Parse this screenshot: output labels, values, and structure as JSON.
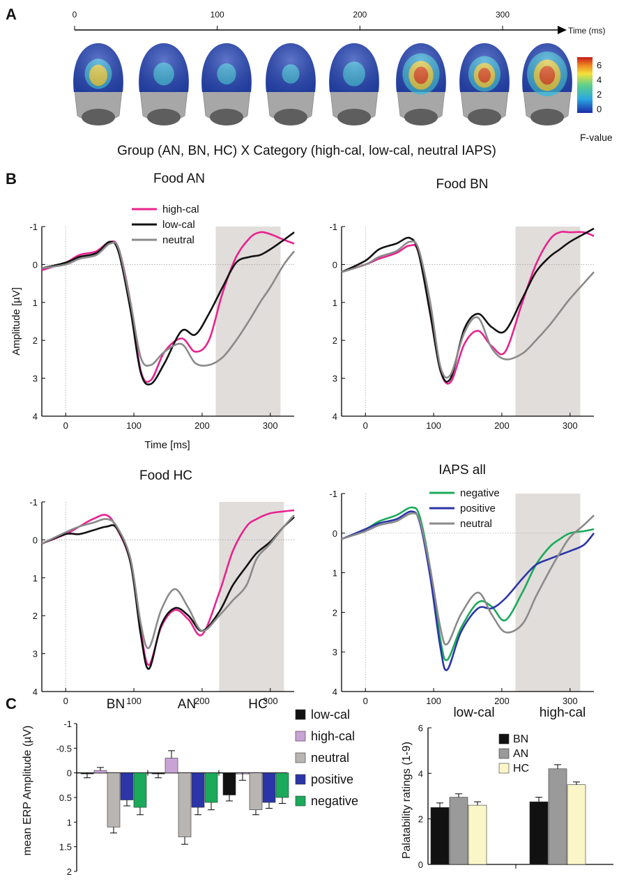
{
  "panel_labels": {
    "a": "A",
    "b": "B",
    "c": "C"
  },
  "timeline": {
    "ticks": [
      "0",
      "100",
      "200",
      "300"
    ],
    "axis_label": "Time (ms)"
  },
  "topomaps": {
    "caption": "Group (AN, BN, HC) X Category (high-cal, low-cal, neutral IAPS)",
    "colorbar_label": "F-value",
    "colorbar_ticks": [
      "6",
      "4",
      "2",
      "0"
    ],
    "intensity": [
      0.45,
      0.25,
      0.2,
      0.15,
      0.3,
      0.75,
      0.6,
      0.85
    ]
  },
  "colors": {
    "high_cal": "#e8228f",
    "low_cal": "#111111",
    "neutral": "#8a8a8a",
    "negative": "#1aaa5a",
    "positive": "#2b35a8",
    "bar_neutral": "#b9b5b2",
    "bar_high_cal": "#c9a3d6",
    "bar_AN": "#9a9a9a",
    "bar_HC": "#fbf6c8",
    "shade": "#e1ddda"
  },
  "chart_data": [
    {
      "type": "line",
      "id": "food_an",
      "title": "Food AN",
      "ylabel": "Amplitude [µV]",
      "xlabel": "Time [ms]",
      "xlim": [
        -35,
        335
      ],
      "ylim": [
        4,
        -1
      ],
      "xticks": [
        "0",
        "100",
        "200",
        "300"
      ],
      "yticks": [
        "-1",
        "0",
        "1",
        "2",
        "3",
        "4"
      ],
      "shaded": [
        220,
        315
      ],
      "x": [
        -35,
        0,
        20,
        45,
        65,
        78,
        95,
        110,
        125,
        145,
        170,
        190,
        210,
        230,
        250,
        270,
        285,
        300,
        320,
        335
      ],
      "series": [
        {
          "name": "high-cal",
          "values": [
            0.15,
            -0.05,
            -0.25,
            -0.35,
            -0.6,
            -0.4,
            1.0,
            2.8,
            3.05,
            2.3,
            1.95,
            2.3,
            2.0,
            0.75,
            -0.2,
            -0.7,
            -0.85,
            -0.8,
            -0.65,
            -0.55
          ]
        },
        {
          "name": "low-cal",
          "values": [
            0.1,
            -0.05,
            -0.2,
            -0.3,
            -0.6,
            -0.3,
            1.2,
            2.85,
            3.15,
            2.6,
            1.75,
            1.85,
            1.3,
            0.6,
            -0.05,
            -0.2,
            -0.25,
            -0.4,
            -0.65,
            -0.85
          ]
        },
        {
          "name": "neutral",
          "values": [
            0.1,
            0.0,
            -0.15,
            -0.25,
            -0.55,
            -0.4,
            1.0,
            2.45,
            2.65,
            2.3,
            2.1,
            2.6,
            2.65,
            2.45,
            2.0,
            1.45,
            1.0,
            0.6,
            0.0,
            -0.35
          ]
        }
      ]
    },
    {
      "type": "line",
      "id": "food_bn",
      "title": "Food BN",
      "xlim": [
        -35,
        335
      ],
      "ylim": [
        4,
        -1
      ],
      "xticks": [
        "0",
        "100",
        "200",
        "300"
      ],
      "yticks": [
        "-1",
        "0",
        "1",
        "2",
        "3",
        "4"
      ],
      "shaded": [
        220,
        315
      ],
      "x": [
        -35,
        0,
        20,
        45,
        65,
        78,
        95,
        110,
        125,
        145,
        165,
        185,
        205,
        230,
        250,
        270,
        285,
        300,
        320,
        335
      ],
      "series": [
        {
          "name": "high-cal",
          "values": [
            0.2,
            0.0,
            -0.15,
            -0.3,
            -0.5,
            -0.3,
            1.3,
            2.8,
            3.1,
            2.1,
            1.75,
            2.15,
            2.3,
            1.0,
            0.0,
            -0.65,
            -0.85,
            -0.85,
            -0.85,
            -0.75
          ]
        },
        {
          "name": "low-cal",
          "values": [
            0.2,
            -0.1,
            -0.4,
            -0.55,
            -0.7,
            -0.3,
            1.3,
            2.8,
            3.0,
            1.7,
            1.3,
            1.65,
            1.75,
            0.9,
            0.2,
            -0.2,
            -0.4,
            -0.6,
            -0.8,
            -0.95
          ]
        },
        {
          "name": "neutral",
          "values": [
            0.2,
            0.0,
            -0.2,
            -0.35,
            -0.6,
            -0.4,
            1.0,
            2.7,
            2.9,
            1.8,
            1.4,
            2.2,
            2.5,
            2.35,
            2.0,
            1.6,
            1.25,
            0.9,
            0.5,
            0.2
          ]
        }
      ]
    },
    {
      "type": "line",
      "id": "food_hc",
      "title": "Food HC",
      "xlim": [
        -35,
        335
      ],
      "ylim": [
        4,
        -1
      ],
      "xticks": [
        "0",
        "100",
        "200",
        "300"
      ],
      "yticks": [
        "-1",
        "0",
        "1",
        "2",
        "3",
        "4"
      ],
      "shaded": [
        225,
        320
      ],
      "x": [
        -35,
        0,
        20,
        40,
        60,
        75,
        95,
        110,
        122,
        140,
        160,
        180,
        200,
        225,
        245,
        265,
        280,
        300,
        320,
        335
      ],
      "series": [
        {
          "name": "high-cal",
          "values": [
            0.1,
            -0.15,
            -0.35,
            -0.55,
            -0.65,
            -0.3,
            0.6,
            2.4,
            3.3,
            2.3,
            1.85,
            2.1,
            2.5,
            1.4,
            0.3,
            -0.35,
            -0.55,
            -0.7,
            -0.75,
            -0.78
          ]
        },
        {
          "name": "low-cal",
          "values": [
            0.1,
            -0.15,
            -0.15,
            -0.25,
            -0.35,
            -0.3,
            0.6,
            2.5,
            3.4,
            2.25,
            1.8,
            2.0,
            2.4,
            1.9,
            1.2,
            0.7,
            0.35,
            0.05,
            -0.35,
            -0.6
          ]
        },
        {
          "name": "neutral",
          "values": [
            0.1,
            -0.2,
            -0.35,
            -0.45,
            -0.55,
            -0.35,
            0.5,
            2.2,
            2.85,
            1.85,
            1.3,
            1.8,
            2.4,
            2.0,
            1.6,
            1.2,
            0.5,
            0.1,
            -0.35,
            -0.65
          ]
        }
      ]
    },
    {
      "type": "line",
      "id": "iaps_all",
      "title": "IAPS all",
      "xlim": [
        -35,
        335
      ],
      "ylim": [
        4,
        -1
      ],
      "xticks": [
        "0",
        "100",
        "200",
        "300"
      ],
      "yticks": [
        "-1",
        "0",
        "1",
        "2",
        "3",
        "4"
      ],
      "shaded": [
        220,
        315
      ],
      "x": [
        -35,
        0,
        20,
        45,
        68,
        80,
        95,
        110,
        120,
        140,
        165,
        185,
        205,
        230,
        250,
        270,
        285,
        300,
        320,
        335
      ],
      "series": [
        {
          "name": "negative",
          "values": [
            0.15,
            -0.1,
            -0.3,
            -0.45,
            -0.65,
            -0.4,
            0.9,
            2.7,
            3.2,
            2.4,
            1.75,
            1.85,
            2.2,
            1.5,
            0.8,
            0.35,
            0.15,
            0.0,
            -0.05,
            -0.1
          ]
        },
        {
          "name": "positive",
          "values": [
            0.15,
            -0.1,
            -0.25,
            -0.35,
            -0.55,
            -0.25,
            1.1,
            2.9,
            3.45,
            2.5,
            1.9,
            1.9,
            1.65,
            1.15,
            0.8,
            0.65,
            0.55,
            0.45,
            0.3,
            0.0
          ]
        },
        {
          "name": "neutral",
          "values": [
            0.15,
            -0.05,
            -0.2,
            -0.3,
            -0.5,
            -0.3,
            0.9,
            2.4,
            2.8,
            2.05,
            1.5,
            2.05,
            2.5,
            2.3,
            1.6,
            0.95,
            0.5,
            0.1,
            -0.2,
            -0.45
          ]
        }
      ]
    },
    {
      "type": "bar",
      "id": "erp_bars",
      "ylabel": "mean ERP Amplitude (µV)",
      "ylim": [
        2,
        -1
      ],
      "yticks": [
        "-1",
        "-0.5",
        "0",
        "0.5",
        "1",
        "1.5",
        "2"
      ],
      "groups": [
        "BN",
        "AN",
        "HC"
      ],
      "series": [
        {
          "name": "low-cal",
          "values": [
            0.0,
            0.0,
            0.45
          ],
          "errors": [
            0.1,
            0.1,
            0.12
          ]
        },
        {
          "name": "high-cal",
          "values": [
            -0.05,
            -0.3,
            0.0
          ],
          "errors": [
            0.06,
            0.15,
            0.15
          ]
        },
        {
          "name": "neutral",
          "values": [
            1.1,
            1.3,
            0.75
          ],
          "errors": [
            0.12,
            0.15,
            0.1
          ]
        },
        {
          "name": "positive",
          "values": [
            0.55,
            0.7,
            0.6
          ],
          "errors": [
            0.12,
            0.15,
            0.12
          ]
        },
        {
          "name": "negative",
          "values": [
            0.7,
            0.6,
            0.5
          ],
          "errors": [
            0.15,
            0.15,
            0.12
          ]
        }
      ]
    },
    {
      "type": "bar",
      "id": "palatability",
      "ylabel": "Palatability ratings (1-9)",
      "ylim": [
        0,
        6
      ],
      "yticks": [
        "0",
        "2",
        "4",
        "6"
      ],
      "groups": [
        "low-cal",
        "high-cal"
      ],
      "series": [
        {
          "name": "BN",
          "values": [
            2.5,
            2.75
          ],
          "errors": [
            0.2,
            0.2
          ]
        },
        {
          "name": "AN",
          "values": [
            2.95,
            4.2
          ],
          "errors": [
            0.15,
            0.18
          ]
        },
        {
          "name": "HC",
          "values": [
            2.6,
            3.5
          ],
          "errors": [
            0.15,
            0.12
          ]
        }
      ]
    }
  ]
}
